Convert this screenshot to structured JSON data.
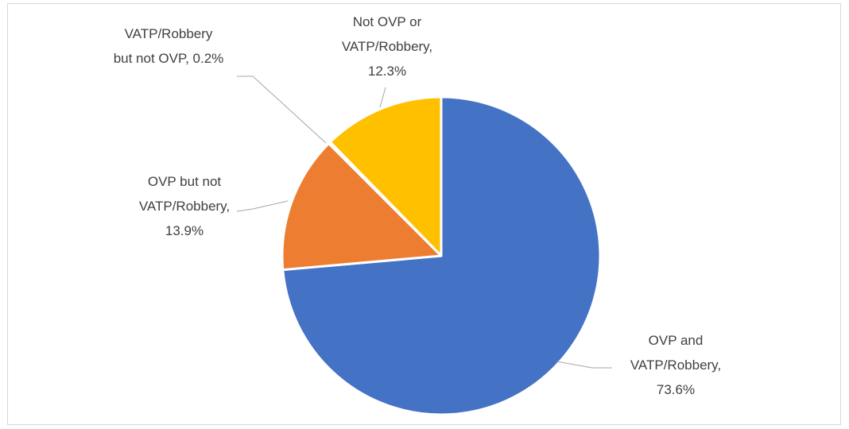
{
  "chart_data": {
    "type": "pie",
    "values": [
      73.6,
      13.9,
      0.2,
      12.3
    ],
    "value_labels": [
      "OVP and\nVATP/Robbery,\n73.6%",
      "OVP but not\nVATP/Robbery,\n13.9%",
      "VATP/Robbery\nbut not OVP, 0.2%",
      "Not OVP or\nVATP/Robbery,\n12.3%"
    ],
    "colors": [
      "#4472c4",
      "#ed7d31",
      "#a5a5a5",
      "#ffc000"
    ]
  }
}
